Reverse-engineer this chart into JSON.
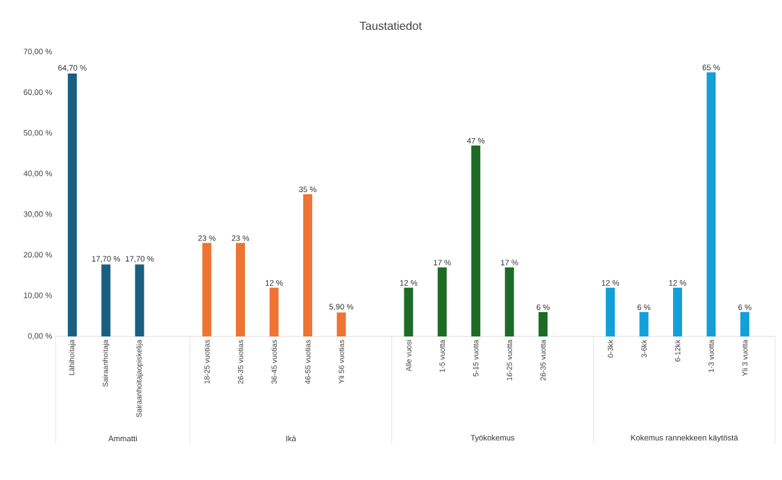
{
  "chart_data": {
    "type": "bar",
    "title": "Taustatiedot",
    "categories": [
      "Lähihoitaja",
      "Sairaanhoitaja",
      "Sairaanhoitajaopiskelija",
      "18-25 vuotias",
      "26-35 vuotias",
      "36-45 vuotias",
      "46-55 vuotias",
      "Yli 56 vuotias",
      "Alle vuosi",
      "1-5 vuotta",
      "5-15 vuotta",
      "16-25 vuotta",
      "26-35 vuotta",
      "0-3kk",
      "3-6kk",
      "6-12kk",
      "1-3 vuotta",
      "Yli 3 vuotta"
    ],
    "series": [
      {
        "color": "#1a5e80",
        "values": [
          64.7,
          17.7,
          17.7,
          null,
          null,
          null,
          null,
          null,
          null,
          null,
          null,
          null,
          null,
          null,
          null,
          null,
          null,
          null
        ],
        "value_labels": [
          "64,70 %",
          "17,70 %",
          "17,70 %",
          null,
          null,
          null,
          null,
          null,
          null,
          null,
          null,
          null,
          null,
          null,
          null,
          null,
          null,
          null
        ]
      },
      {
        "color": "#ed7433",
        "values": [
          null,
          null,
          null,
          23,
          23,
          12,
          35,
          5.9,
          null,
          null,
          null,
          null,
          null,
          null,
          null,
          null,
          null,
          null
        ],
        "value_labels": [
          null,
          null,
          null,
          "23 %",
          "23 %",
          "12 %",
          "35 %",
          "5,90 %",
          null,
          null,
          null,
          null,
          null,
          null,
          null,
          null,
          null,
          null
        ]
      },
      {
        "color": "#1d6b26",
        "values": [
          null,
          null,
          null,
          null,
          null,
          null,
          null,
          null,
          12,
          17,
          47,
          17,
          6,
          null,
          null,
          null,
          null,
          null
        ],
        "value_labels": [
          null,
          null,
          null,
          null,
          null,
          null,
          null,
          null,
          "12 %",
          "17 %",
          "47 %",
          "17 %",
          "6 %",
          null,
          null,
          null,
          null,
          null
        ]
      },
      {
        "color": "#13a0d8",
        "values": [
          null,
          null,
          null,
          null,
          null,
          null,
          null,
          null,
          null,
          null,
          null,
          null,
          null,
          12,
          6,
          12,
          65,
          6
        ],
        "value_labels": [
          null,
          null,
          null,
          null,
          null,
          null,
          null,
          null,
          null,
          null,
          null,
          null,
          null,
          "12 %",
          "6 %",
          "12 %",
          "65 %",
          "6 %"
        ]
      }
    ],
    "ylim": [
      0,
      70
    ],
    "yticks": [
      {
        "value": 0,
        "label": "0,00 %"
      },
      {
        "value": 10,
        "label": "10,00 %"
      },
      {
        "value": 20,
        "label": "20,00 %"
      },
      {
        "value": 30,
        "label": "30,00 %"
      },
      {
        "value": 40,
        "label": "40,00 %"
      },
      {
        "value": 50,
        "label": "50,00 %"
      },
      {
        "value": 60,
        "label": "60,00 %"
      },
      {
        "value": 70,
        "label": "70,00 %"
      }
    ],
    "annotations": [
      "Ammatti",
      "Ikä",
      "Työkokemus",
      "Kokemus rannekkeen käytöstä"
    ],
    "grid": false
  }
}
